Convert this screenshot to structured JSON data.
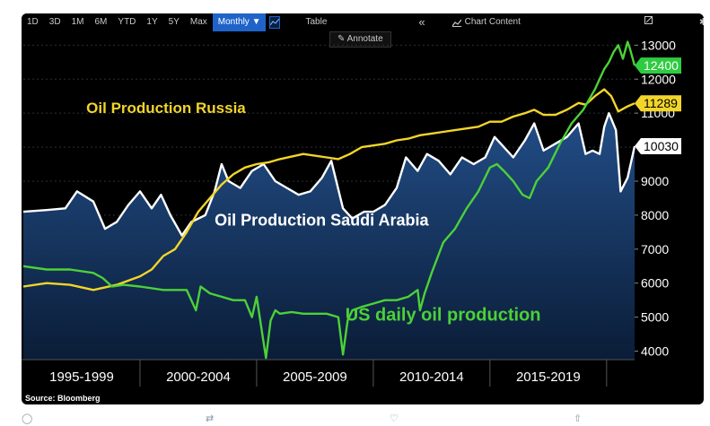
{
  "toolbar": {
    "ranges": [
      "1D",
      "3D",
      "1M",
      "6M",
      "YTD",
      "1Y",
      "5Y",
      "Max"
    ],
    "frequency_label": "Monthly ▼",
    "line_icon": "line-chart-icon",
    "table_label": "Table",
    "collapse_label": "«",
    "chart_content_label": "Chart Content",
    "chart_content_icon": "chart-content-icon",
    "edit_icon": "edit-icon",
    "settings_label": "✱",
    "settings_icon": "settings-icon",
    "annotate_label": "Annotate",
    "annotate_icon": "pen-icon",
    "active_color": "#1f63c9"
  },
  "source": "Source: Bloomberg",
  "chart_data": {
    "type": "line",
    "title": "",
    "ylim": [
      3750,
      13300
    ],
    "yticks": [
      4000,
      5000,
      6000,
      7000,
      8000,
      9000,
      10000,
      11000,
      12000,
      13000
    ],
    "xlim": [
      1995.0,
      2021.2
    ],
    "period_labels": [
      {
        "label": "1995-1999",
        "from": 1995,
        "to": 2000
      },
      {
        "label": "2000-2004",
        "from": 2000,
        "to": 2005
      },
      {
        "label": "2005-2009",
        "from": 2005,
        "to": 2010
      },
      {
        "label": "2010-2014",
        "from": 2010,
        "to": 2015
      },
      {
        "label": "2015-2019",
        "from": 2015,
        "to": 2020
      }
    ],
    "series": [
      {
        "name": "Oil Production Saudi Arabia",
        "color": "#ffffff",
        "area_fill": "#1a3a66",
        "last_value": "10030",
        "x": [
          1995.0,
          1996.0,
          1996.8,
          1997.3,
          1998.0,
          1998.5,
          1999.0,
          1999.5,
          2000.0,
          2000.5,
          2000.9,
          2001.3,
          2001.8,
          2002.2,
          2002.8,
          2003.2,
          2003.5,
          2003.8,
          2004.3,
          2004.8,
          2005.3,
          2005.8,
          2006.3,
          2006.8,
          2007.3,
          2007.8,
          2008.2,
          2008.7,
          2009.1,
          2009.6,
          2010.0,
          2010.5,
          2011.0,
          2011.4,
          2011.9,
          2012.3,
          2012.8,
          2013.3,
          2013.8,
          2014.3,
          2014.8,
          2015.2,
          2015.6,
          2016.0,
          2016.5,
          2016.9,
          2017.3,
          2017.8,
          2018.3,
          2018.8,
          2019.1,
          2019.4,
          2019.7,
          2019.9,
          2020.1,
          2020.4,
          2020.6,
          2020.9,
          2021.2
        ],
        "values": [
          8100,
          8150,
          8200,
          8700,
          8400,
          7600,
          7800,
          8300,
          8700,
          8200,
          8600,
          8000,
          7400,
          7800,
          8000,
          8700,
          9500,
          9000,
          8800,
          9300,
          9500,
          9000,
          8800,
          8600,
          8700,
          9100,
          9600,
          8200,
          7900,
          8100,
          8100,
          8300,
          8800,
          9700,
          9300,
          9800,
          9600,
          9200,
          9700,
          9500,
          9700,
          10300,
          10000,
          9700,
          10200,
          10700,
          9900,
          10100,
          10300,
          10700,
          9800,
          9900,
          9800,
          10600,
          11000,
          10500,
          8700,
          9100,
          10030
        ]
      },
      {
        "name": "Oil Production Russia",
        "color": "#f2d52a",
        "last_value": "11289",
        "x": [
          1995.0,
          1996.0,
          1997.0,
          1998.0,
          1999.0,
          2000.0,
          2000.5,
          2001.0,
          2001.5,
          2002.0,
          2002.5,
          2003.0,
          2003.5,
          2004.0,
          2004.5,
          2005.0,
          2005.5,
          2006.0,
          2007.0,
          2008.0,
          2008.5,
          2009.0,
          2009.5,
          2010.0,
          2010.5,
          2011.0,
          2011.5,
          2012.0,
          2012.5,
          2013.0,
          2013.5,
          2014.0,
          2014.5,
          2015.0,
          2015.5,
          2016.0,
          2016.5,
          2016.9,
          2017.3,
          2017.8,
          2018.3,
          2018.8,
          2019.1,
          2019.5,
          2019.9,
          2020.2,
          2020.5,
          2020.9,
          2021.2
        ],
        "values": [
          5900,
          6000,
          5950,
          5800,
          5950,
          6200,
          6400,
          6800,
          7000,
          7500,
          8100,
          8500,
          8900,
          9200,
          9400,
          9500,
          9550,
          9650,
          9800,
          9700,
          9650,
          9800,
          10000,
          10050,
          10100,
          10200,
          10250,
          10350,
          10400,
          10450,
          10500,
          10550,
          10600,
          10750,
          10750,
          10900,
          11000,
          11100,
          10950,
          10950,
          11100,
          11300,
          11250,
          11500,
          11700,
          11500,
          11050,
          11200,
          11289
        ]
      },
      {
        "name": "US daily oil production",
        "color": "#4cd137",
        "last_value": "12400",
        "x": [
          1995.0,
          1996.0,
          1997.0,
          1998.0,
          1998.4,
          1998.8,
          1999.3,
          2000.0,
          2001.0,
          2002.0,
          2002.4,
          2002.6,
          2003.0,
          2004.0,
          2004.5,
          2004.8,
          2005.0,
          2005.4,
          2005.6,
          2005.8,
          2006.0,
          2006.5,
          2007.0,
          2007.5,
          2008.0,
          2008.5,
          2008.7,
          2008.9,
          2009.1,
          2009.5,
          2010.0,
          2010.5,
          2011.0,
          2011.5,
          2011.9,
          2012.0,
          2012.2,
          2012.5,
          2013.0,
          2013.5,
          2014.0,
          2014.5,
          2015.0,
          2015.3,
          2015.6,
          2016.0,
          2016.4,
          2016.7,
          2017.0,
          2017.5,
          2018.0,
          2018.5,
          2019.0,
          2019.5,
          2019.9,
          2020.1,
          2020.3,
          2020.5,
          2020.7,
          2020.9,
          2021.0,
          2021.2
        ],
        "values": [
          6500,
          6400,
          6400,
          6300,
          6150,
          5900,
          5950,
          5900,
          5800,
          5800,
          5200,
          5900,
          5700,
          5500,
          5500,
          5000,
          5600,
          3800,
          4900,
          5200,
          5100,
          5150,
          5100,
          5100,
          5100,
          5000,
          3900,
          4900,
          5200,
          5300,
          5400,
          5500,
          5500,
          5600,
          5800,
          5200,
          5700,
          6300,
          7200,
          7600,
          8200,
          8700,
          9400,
          9500,
          9300,
          9000,
          8600,
          8500,
          9000,
          9400,
          10100,
          10700,
          11100,
          11700,
          12300,
          12500,
          12800,
          13000,
          12600,
          13100,
          12900,
          12400
        ]
      }
    ],
    "annotations": [
      {
        "text": "Oil Production Russia",
        "color": "#f2d52a",
        "x": 1997.7,
        "y": 11000
      },
      {
        "text": "Oil Production Saudi Arabia",
        "color": "#ffffff",
        "x": 2003.2,
        "y": 7700
      },
      {
        "text": "US daily oil production",
        "color": "#4cd137",
        "x": 2008.8,
        "y": 4900
      }
    ],
    "grid": true,
    "y_axis_position": "right"
  },
  "tweet_actions": {
    "reply_icon": "reply-icon",
    "retweet_icon": "retweet-icon",
    "like_icon": "like-icon",
    "share_icon": "share-icon"
  }
}
